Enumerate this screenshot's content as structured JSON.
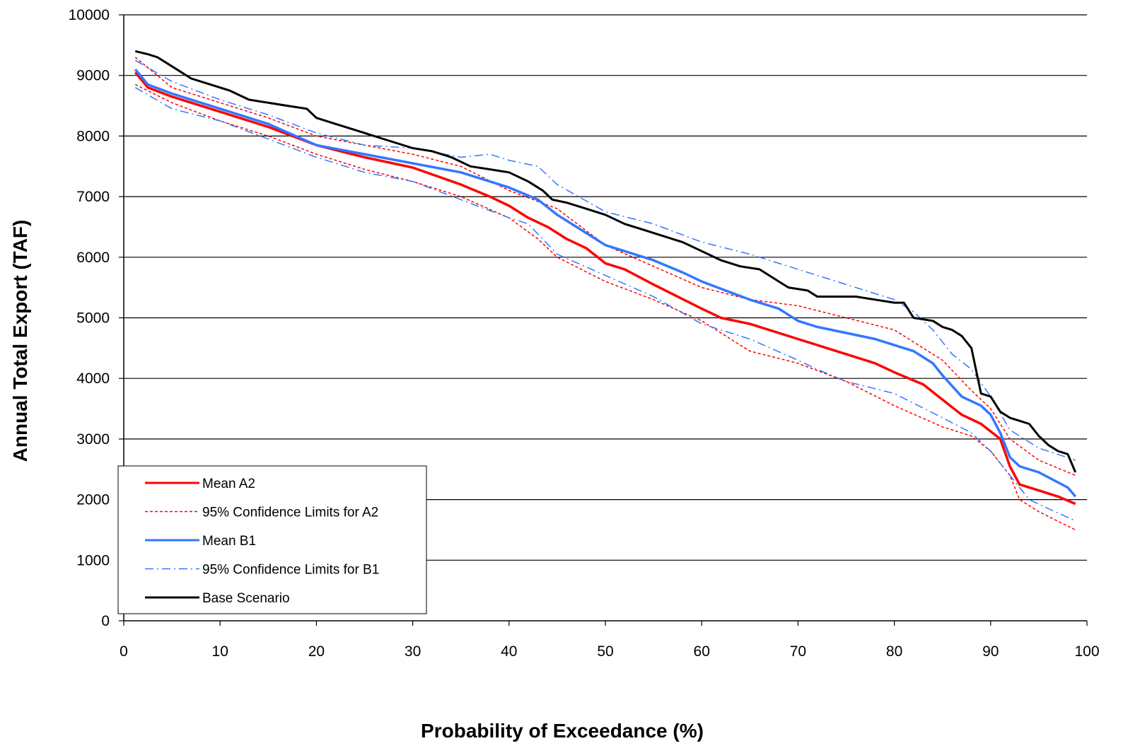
{
  "chart_data": {
    "type": "line",
    "xlabel": "Probability of Exceedance (%)",
    "ylabel": "Annual Total Export (TAF)",
    "xlim": [
      0,
      100
    ],
    "ylim": [
      0,
      10000
    ],
    "xticks": [
      0,
      10,
      20,
      30,
      40,
      50,
      60,
      70,
      80,
      90,
      100
    ],
    "yticks": [
      0,
      1000,
      2000,
      3000,
      4000,
      5000,
      6000,
      7000,
      8000,
      9000,
      10000
    ],
    "grid": "horizontal",
    "legend_position": "bottom-left",
    "series": [
      {
        "name": "Mean A2",
        "color": "#ff0000",
        "style": "solid",
        "x": [
          1.2,
          2.5,
          5,
          10,
          15,
          20,
          25,
          30,
          35,
          38,
          40,
          42,
          44,
          46,
          48,
          50,
          52,
          55,
          60,
          62,
          65,
          70,
          75,
          78,
          80,
          83,
          85,
          87,
          89,
          91,
          92,
          93,
          95,
          97,
          98.8
        ],
        "y": [
          9050,
          8800,
          8650,
          8400,
          8150,
          7850,
          7650,
          7480,
          7200,
          7000,
          6850,
          6650,
          6500,
          6300,
          6150,
          5900,
          5800,
          5550,
          5150,
          5000,
          4900,
          4650,
          4400,
          4250,
          4100,
          3900,
          3650,
          3400,
          3250,
          3000,
          2550,
          2250,
          2150,
          2050,
          1930
        ]
      },
      {
        "name": "95% Confidence Limits for A2",
        "color": "#ff0000",
        "style": "dotted",
        "x": [
          1.2,
          5,
          10,
          15,
          20,
          25,
          30,
          35,
          40,
          45,
          50,
          55,
          60,
          65,
          70,
          75,
          80,
          85,
          88,
          90,
          92,
          95,
          98.8
        ],
        "y": [
          9300,
          8800,
          8550,
          8300,
          8000,
          7850,
          7700,
          7500,
          7100,
          6800,
          6200,
          5850,
          5500,
          5300,
          5200,
          5000,
          4800,
          4300,
          3800,
          3500,
          3000,
          2650,
          2400
        ]
      },
      {
        "name": "",
        "color": "#ff0000",
        "style": "dotted",
        "x": [
          1.2,
          5,
          10,
          15,
          20,
          25,
          30,
          35,
          40,
          43,
          45,
          50,
          55,
          60,
          65,
          70,
          75,
          80,
          85,
          88,
          90,
          92,
          93,
          95,
          98.8
        ],
        "y": [
          8850,
          8550,
          8250,
          8000,
          7700,
          7450,
          7250,
          7000,
          6650,
          6300,
          6000,
          5600,
          5300,
          4950,
          4450,
          4250,
          3950,
          3550,
          3200,
          3050,
          2800,
          2400,
          2000,
          1800,
          1500
        ]
      },
      {
        "name": "Mean B1",
        "color": "#3377ff",
        "style": "solid",
        "x": [
          1.2,
          2.5,
          5,
          10,
          15,
          20,
          25,
          30,
          35,
          40,
          43,
          45,
          48,
          50,
          52,
          55,
          58,
          60,
          65,
          68,
          70,
          72,
          75,
          78,
          80,
          82,
          84,
          85,
          87,
          89,
          90,
          91,
          92,
          93,
          95,
          98,
          98.8
        ],
        "y": [
          9100,
          8850,
          8700,
          8450,
          8200,
          7850,
          7700,
          7550,
          7400,
          7150,
          6950,
          6700,
          6400,
          6200,
          6100,
          5950,
          5750,
          5600,
          5300,
          5150,
          4950,
          4850,
          4750,
          4650,
          4550,
          4450,
          4250,
          4050,
          3700,
          3550,
          3400,
          3100,
          2700,
          2550,
          2450,
          2200,
          2050
        ]
      },
      {
        "name": "95% Confidence Limits for B1",
        "color": "#3377ff",
        "style": "dashdot",
        "x": [
          1.2,
          5,
          10,
          15,
          20,
          25,
          30,
          35,
          38,
          40,
          43,
          45,
          50,
          55,
          60,
          65,
          70,
          75,
          80,
          82,
          84,
          86,
          88,
          90,
          92,
          95,
          98.8
        ],
        "y": [
          9250,
          8900,
          8600,
          8350,
          8050,
          7850,
          7800,
          7650,
          7700,
          7600,
          7500,
          7200,
          6750,
          6550,
          6250,
          6050,
          5800,
          5550,
          5300,
          5100,
          4800,
          4400,
          4150,
          3700,
          3150,
          2850,
          2650
        ]
      },
      {
        "name": "",
        "color": "#3377ff",
        "style": "dashdot",
        "x": [
          1.2,
          5,
          10,
          15,
          20,
          25,
          30,
          35,
          40,
          42,
          45,
          50,
          55,
          60,
          65,
          70,
          72,
          75,
          80,
          85,
          88,
          90,
          92,
          94,
          96,
          98.8
        ],
        "y": [
          8800,
          8450,
          8250,
          7950,
          7650,
          7400,
          7250,
          6950,
          6650,
          6550,
          6050,
          5700,
          5350,
          4900,
          4650,
          4300,
          4150,
          3950,
          3750,
          3350,
          3100,
          2800,
          2400,
          2000,
          1850,
          1650
        ]
      },
      {
        "name": "Base Scenario",
        "color": "#000000",
        "style": "solid",
        "x": [
          1.2,
          2.5,
          3.5,
          5,
          7,
          9,
          11,
          13,
          15,
          17,
          19,
          20,
          22,
          24,
          26,
          28,
          30,
          32,
          34,
          36,
          38,
          40,
          42,
          43.5,
          44.5,
          46,
          48,
          50,
          52,
          54,
          56,
          58,
          60,
          62,
          64,
          66,
          68,
          69,
          71,
          72,
          73,
          76,
          78,
          80,
          81,
          82,
          84,
          85,
          86,
          87,
          88,
          89,
          90,
          91,
          92,
          93,
          94,
          95,
          96,
          97,
          98,
          98.8
        ],
        "y": [
          9400,
          9350,
          9300,
          9150,
          8950,
          8850,
          8750,
          8600,
          8550,
          8500,
          8450,
          8300,
          8200,
          8100,
          8000,
          7900,
          7800,
          7750,
          7650,
          7500,
          7450,
          7400,
          7250,
          7100,
          6950,
          6900,
          6800,
          6700,
          6550,
          6450,
          6350,
          6250,
          6100,
          5950,
          5850,
          5800,
          5600,
          5500,
          5450,
          5350,
          5350,
          5350,
          5300,
          5250,
          5250,
          5000,
          4950,
          4850,
          4800,
          4700,
          4500,
          3750,
          3700,
          3450,
          3350,
          3300,
          3250,
          3050,
          2900,
          2800,
          2750,
          2450
        ]
      }
    ]
  }
}
